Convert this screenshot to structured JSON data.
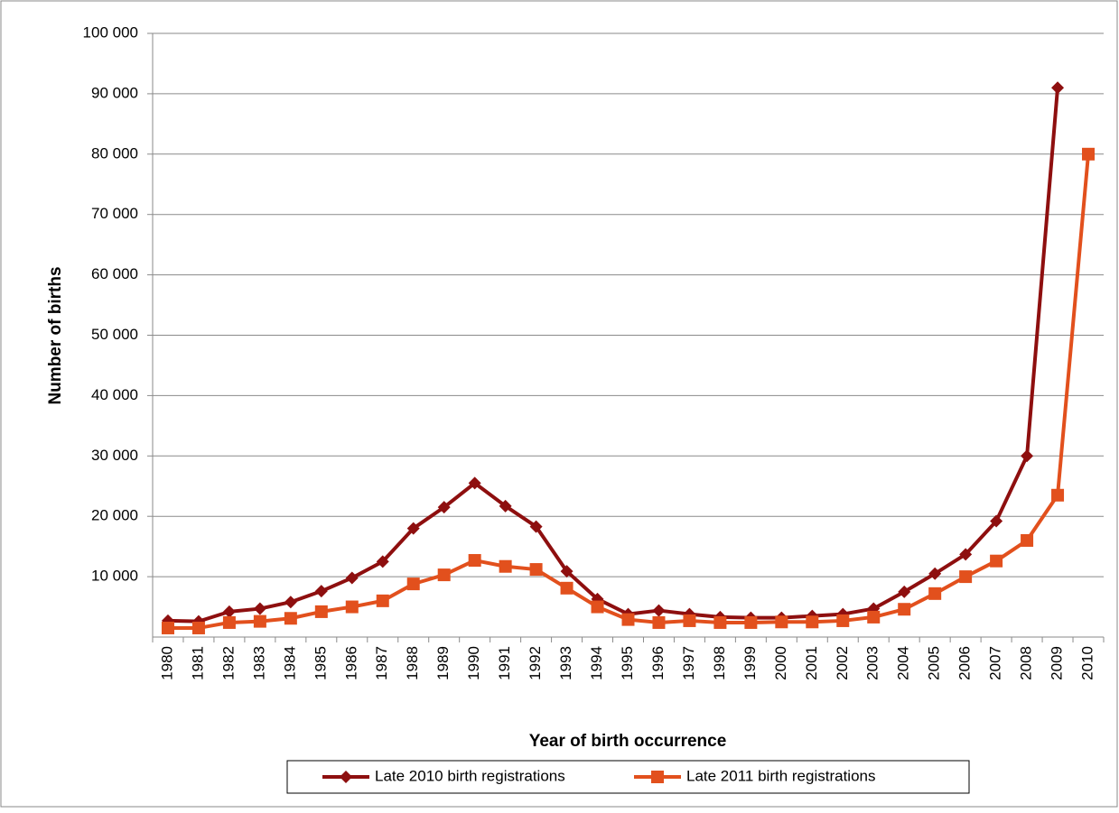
{
  "chart_data": {
    "type": "line",
    "x_label": "Year of birth occurrence",
    "y_label": "Number of births",
    "categories": [
      "1980",
      "1981",
      "1982",
      "1983",
      "1984",
      "1985",
      "1986",
      "1987",
      "1988",
      "1989",
      "1990",
      "1991",
      "1992",
      "1993",
      "1994",
      "1995",
      "1996",
      "1997",
      "1998",
      "1999",
      "2000",
      "2001",
      "2002",
      "2003",
      "2004",
      "2005",
      "2006",
      "2007",
      "2008",
      "2009",
      "2010"
    ],
    "series": [
      {
        "name": "Late 2010 birth registrations",
        "color": "#8e0f0f",
        "marker": "diamond",
        "values": [
          2700,
          2600,
          4200,
          4700,
          5800,
          7600,
          9800,
          12500,
          18000,
          21500,
          25500,
          21700,
          18300,
          10900,
          6300,
          3800,
          4400,
          3800,
          3300,
          3200,
          3200,
          3500,
          3800,
          4700,
          7500,
          10500,
          13700,
          19200,
          30000,
          91000,
          null
        ]
      },
      {
        "name": "Late 2011 birth registrations",
        "color": "#e2501d",
        "marker": "square",
        "values": [
          1500,
          1500,
          2400,
          2600,
          3100,
          4200,
          5000,
          6000,
          8800,
          10300,
          12700,
          11700,
          11200,
          8100,
          5000,
          2900,
          2400,
          2700,
          2400,
          2400,
          2500,
          2500,
          2700,
          3300,
          4600,
          7200,
          10000,
          12600,
          16000,
          23500,
          80000
        ]
      }
    ],
    "ylim": [
      0,
      100000
    ],
    "yticks": [
      {
        "value": 10000,
        "label": "10 000"
      },
      {
        "value": 20000,
        "label": "20 000"
      },
      {
        "value": 30000,
        "label": "30 000"
      },
      {
        "value": 40000,
        "label": "40 000"
      },
      {
        "value": 50000,
        "label": "50 000"
      },
      {
        "value": 60000,
        "label": "60 000"
      },
      {
        "value": 70000,
        "label": "70 000"
      },
      {
        "value": 80000,
        "label": "80 000"
      },
      {
        "value": 90000,
        "label": "90 000"
      },
      {
        "value": 100000,
        "label": "100 000"
      }
    ],
    "grid": true
  }
}
